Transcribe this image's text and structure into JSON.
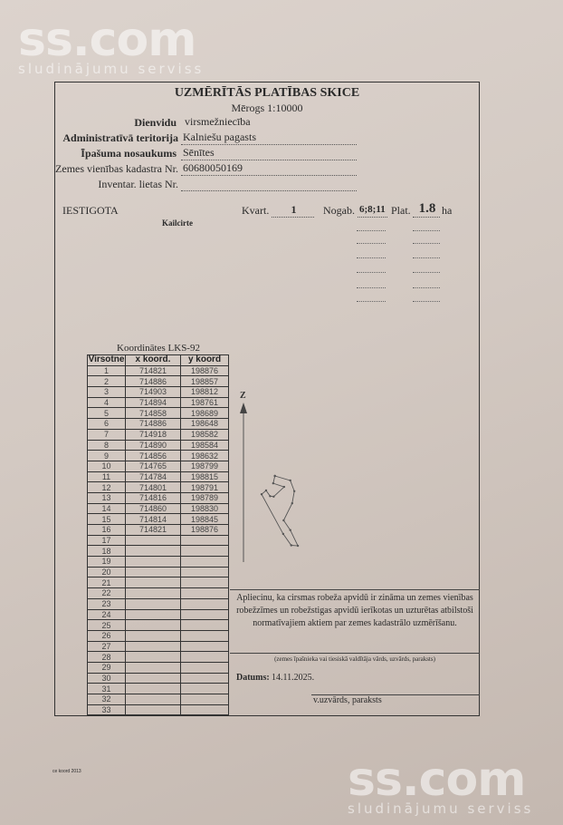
{
  "watermark": {
    "brand": "ss.com",
    "tagline": "sludinājumu serviss"
  },
  "document": {
    "title": "UZMĒRĪTĀS PLATĪBAS SKICE",
    "scale": "Mērogs 1:10000",
    "fields": [
      {
        "label": "Dienvidu",
        "value": "virsmežniecība"
      },
      {
        "label": "Administratīvā teritorija",
        "value": "Kalniešu pagasts"
      },
      {
        "label": "Īpašuma nosaukums",
        "value": "Sēnītes"
      },
      {
        "label": "Zemes vienības kadastra Nr.",
        "value": "60680050169"
      },
      {
        "label": "Inventar. lietas Nr.",
        "value": ""
      }
    ],
    "status": "IESTIGOTA",
    "kvart_label": "Kvart.",
    "kvart": "1",
    "nogab_label": "Nogab.",
    "nogab": "6;8;11",
    "plat_label": "Plat.",
    "plat": "1.8",
    "unit": "ha",
    "cut_type": "Kailcirte"
  },
  "coordinates": {
    "caption": "Koordinātes LKS-92",
    "headers": [
      "Virsotne",
      "x koord.",
      "y koord"
    ],
    "rows": [
      [
        "1",
        "714821",
        "198876"
      ],
      [
        "2",
        "714886",
        "198857"
      ],
      [
        "3",
        "714903",
        "198812"
      ],
      [
        "4",
        "714894",
        "198761"
      ],
      [
        "5",
        "714858",
        "198689"
      ],
      [
        "6",
        "714886",
        "198648"
      ],
      [
        "7",
        "714918",
        "198582"
      ],
      [
        "8",
        "714890",
        "198584"
      ],
      [
        "9",
        "714856",
        "198632"
      ],
      [
        "10",
        "714765",
        "198799"
      ],
      [
        "11",
        "714784",
        "198815"
      ],
      [
        "12",
        "714801",
        "198791"
      ],
      [
        "13",
        "714816",
        "198789"
      ],
      [
        "14",
        "714860",
        "198830"
      ],
      [
        "15",
        "714814",
        "198845"
      ],
      [
        "16",
        "714821",
        "198876"
      ],
      [
        "17",
        "",
        ""
      ],
      [
        "18",
        "",
        ""
      ],
      [
        "19",
        "",
        ""
      ],
      [
        "20",
        "",
        ""
      ],
      [
        "21",
        "",
        ""
      ],
      [
        "22",
        "",
        ""
      ],
      [
        "23",
        "",
        ""
      ],
      [
        "24",
        "",
        ""
      ],
      [
        "25",
        "",
        ""
      ],
      [
        "26",
        "",
        ""
      ],
      [
        "27",
        "",
        ""
      ],
      [
        "28",
        "",
        ""
      ],
      [
        "29",
        "",
        ""
      ],
      [
        "30",
        "",
        ""
      ],
      [
        "31",
        "",
        ""
      ],
      [
        "32",
        "",
        ""
      ],
      [
        "33",
        "",
        ""
      ]
    ]
  },
  "sketch": {
    "north_label": "Z"
  },
  "declaration": {
    "text": "Apliecinu, ka cirsmas robeža apvidū ir zināma un zemes vienības robežzīmes un robežstigas apvidū ierīkotas un uzturētas atbilstoši normatīvajiem aktiem par zemes kadastrālo uzmērīšanu.",
    "owner_caption": "(zemes īpašnieka vai tiesiskā valdītāja vārds, uzvārds, paraksts)",
    "date_label": "Datums:",
    "date": "14.11.2025.",
    "signature_caption": "v.uzvārds, paraksts"
  },
  "footer_note": "ce koord 2013"
}
